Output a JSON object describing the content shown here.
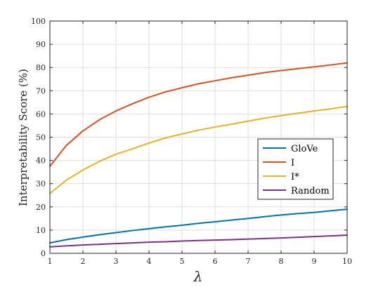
{
  "chart_data": {
    "type": "line",
    "title": "",
    "xlabel": "λ",
    "ylabel": "Interpretability Score (%)",
    "xlim": [
      1,
      10
    ],
    "ylim": [
      0,
      100
    ],
    "xticks": [
      1,
      2,
      3,
      4,
      5,
      6,
      7,
      8,
      9,
      10
    ],
    "yticks": [
      0,
      10,
      20,
      30,
      40,
      50,
      60,
      70,
      80,
      90,
      100
    ],
    "grid": true,
    "legend_position": "right-center",
    "x": [
      1,
      1.5,
      2,
      2.5,
      3,
      3.5,
      4,
      4.5,
      5,
      5.5,
      6,
      6.5,
      7,
      7.5,
      8,
      8.5,
      9,
      9.5,
      10
    ],
    "series": [
      {
        "name": "GloVe",
        "color": "#0072BD",
        "values": [
          4.5,
          5.9,
          7.0,
          8.0,
          8.9,
          9.8,
          10.6,
          11.4,
          12.1,
          12.9,
          13.6,
          14.3,
          15.0,
          15.8,
          16.5,
          17.1,
          17.6,
          18.3,
          19.0
        ]
      },
      {
        "name": "I",
        "color": "#D95319",
        "values": [
          37.5,
          46.5,
          52.7,
          57.5,
          61.3,
          64.4,
          67.2,
          69.5,
          71.3,
          73.0,
          74.3,
          75.6,
          76.7,
          77.8,
          78.7,
          79.5,
          80.3,
          81.1,
          82.0
        ]
      },
      {
        "name": "I*",
        "color": "#EDB120",
        "values": [
          25.8,
          31.5,
          35.9,
          39.6,
          42.7,
          45.0,
          47.5,
          49.7,
          51.4,
          53.0,
          54.4,
          55.6,
          56.9,
          58.2,
          59.3,
          60.3,
          61.3,
          62.2,
          63.3
        ]
      },
      {
        "name": "Random",
        "color": "#7E2F8E",
        "values": [
          2.8,
          3.2,
          3.6,
          3.9,
          4.2,
          4.5,
          4.8,
          5.0,
          5.3,
          5.5,
          5.7,
          5.9,
          6.1,
          6.4,
          6.6,
          6.9,
          7.2,
          7.5,
          7.8
        ]
      }
    ]
  }
}
